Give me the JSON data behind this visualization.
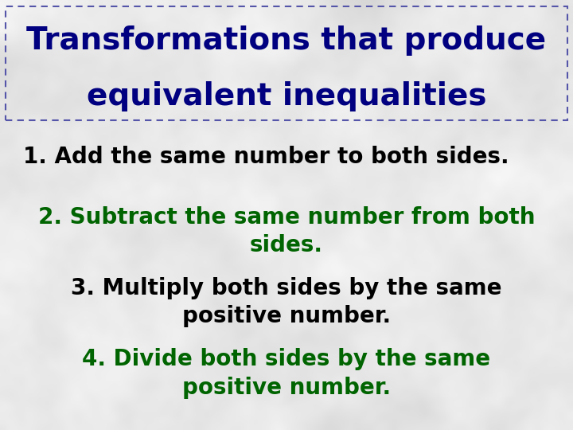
{
  "title_line1": "Transformations that produce",
  "title_line2": "equivalent inequalities",
  "title_color": "#000080",
  "item1": "1. Add the same number to both sides.",
  "item1_color": "#000000",
  "item2_line1": "2. Subtract the same number from both",
  "item2_line2": "sides.",
  "item2_color": "#006400",
  "item3_line1": "3. Multiply both sides by the same",
  "item3_line2": "positive number.",
  "item3_color": "#000000",
  "item4_line1": "4. Divide both sides by the same",
  "item4_line2": "positive number.",
  "item4_color": "#006400",
  "box_border_color": "#5555aa",
  "fig_width": 7.2,
  "fig_height": 5.4,
  "dpi": 100
}
